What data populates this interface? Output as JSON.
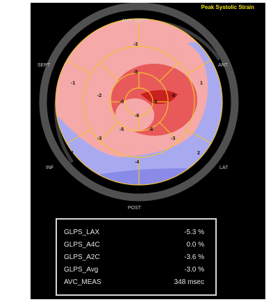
{
  "title": "Peak Systolic Strain",
  "walls": {
    "ant_sept": "ANT_SEPT",
    "ant": "ANT",
    "sept": "SEPT",
    "lat": "LAT",
    "inf": "INF",
    "post": "POST"
  },
  "segments": {
    "outer_ant_sept": "-3",
    "outer_sept": "-1",
    "outer_ant": "1",
    "outer_lat": "2",
    "outer_inf": "-1",
    "outer_post": "4",
    "mid_ant_sept": "-8",
    "mid_sept": "-2",
    "mid_ant": "-8",
    "mid_lat": "-3",
    "mid_inf": "-3",
    "mid_post": "-4",
    "inner_sept": "-6",
    "inner_lat": "-6",
    "inner_inf": "-5",
    "inner_post": "-6",
    "apex": "-6"
  },
  "stats": [
    {
      "label": "GLPS_LAX",
      "value": "-5.3 %"
    },
    {
      "label": "GLPS_A4C",
      "value": "0.0 %"
    },
    {
      "label": "GLPS_A2C",
      "value": "-3.6 %"
    },
    {
      "label": "GLPS_Avg",
      "value": "-3.0 %"
    },
    {
      "label": "AVC_MEAS",
      "value": "348 msec"
    }
  ],
  "colors": {
    "background": "#000000",
    "ring": "#505050",
    "pink": "#f5a9a9",
    "red": "#e85a5a",
    "deep_red": "#d92b2b",
    "blue": "#a9a9f0",
    "grid": "#f2c230",
    "title": "#f5e21a"
  }
}
